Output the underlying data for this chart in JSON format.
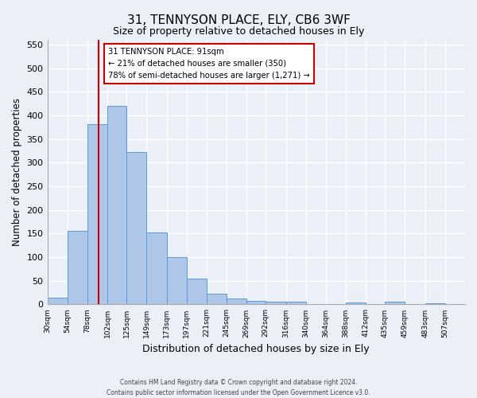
{
  "title": "31, TENNYSON PLACE, ELY, CB6 3WF",
  "subtitle": "Size of property relative to detached houses in Ely",
  "xlabel": "Distribution of detached houses by size in Ely",
  "ylabel": "Number of detached properties",
  "bin_labels": [
    "30sqm",
    "54sqm",
    "78sqm",
    "102sqm",
    "125sqm",
    "149sqm",
    "173sqm",
    "197sqm",
    "221sqm",
    "245sqm",
    "269sqm",
    "292sqm",
    "316sqm",
    "340sqm",
    "364sqm",
    "388sqm",
    "412sqm",
    "435sqm",
    "459sqm",
    "483sqm",
    "507sqm"
  ],
  "bar_heights": [
    15,
    155,
    382,
    421,
    322,
    153,
    100,
    55,
    22,
    13,
    8,
    6,
    5,
    0,
    0,
    4,
    0,
    5,
    0,
    3,
    0
  ],
  "bar_color": "#aec6e8",
  "bar_edge_color": "#5b9bd5",
  "ylim": [
    0,
    560
  ],
  "yticks": [
    0,
    50,
    100,
    150,
    200,
    250,
    300,
    350,
    400,
    450,
    500,
    550
  ],
  "vline_x": 91,
  "vline_color": "#cc0000",
  "annotation_title": "31 TENNYSON PLACE: 91sqm",
  "annotation_line1": "← 21% of detached houses are smaller (350)",
  "annotation_line2": "78% of semi-detached houses are larger (1,271) →",
  "annotation_box_color": "#cc0000",
  "footer_line1": "Contains HM Land Registry data © Crown copyright and database right 2024.",
  "footer_line2": "Contains public sector information licensed under the Open Government Licence v3.0.",
  "background_color": "#eaeff8",
  "plot_bg_color": "#eaeff8",
  "grid_color": "#ffffff",
  "bin_starts": [
    30,
    54,
    78,
    102,
    125,
    149,
    173,
    197,
    221,
    245,
    269,
    292,
    316,
    340,
    364,
    388,
    412,
    435,
    459,
    483,
    507
  ]
}
